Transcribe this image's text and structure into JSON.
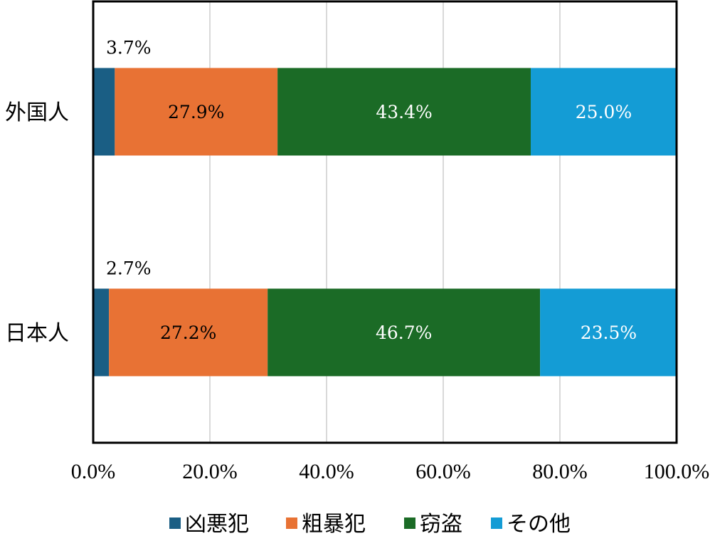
{
  "chart_data": {
    "type": "bar",
    "orientation": "horizontal",
    "stacked": "100%",
    "title": "",
    "xlabel": "",
    "ylabel": "",
    "xlim": [
      0,
      100
    ],
    "grid": true,
    "legend_position": "bottom",
    "categories": [
      "外国人",
      "日本人"
    ],
    "x_ticks": [
      "0.0%",
      "20.0%",
      "40.0%",
      "60.0%",
      "80.0%",
      "100.0%"
    ],
    "series": [
      {
        "name": "凶悪犯",
        "color": "#1a5e84",
        "label_color": "#000000",
        "label_outside": true,
        "values": [
          3.7,
          2.7
        ],
        "labels": [
          "3.7%",
          "2.7%"
        ]
      },
      {
        "name": "粗暴犯",
        "color": "#e87234",
        "label_color": "#000000",
        "label_outside": false,
        "values": [
          27.9,
          27.2
        ],
        "labels": [
          "27.9%",
          "27.2%"
        ]
      },
      {
        "name": "窃盗",
        "color": "#1b6b26",
        "label_color": "#ffffff",
        "label_outside": false,
        "values": [
          43.4,
          46.7
        ],
        "labels": [
          "43.4%",
          "46.7%"
        ]
      },
      {
        "name": "その他",
        "color": "#149cd5",
        "label_color": "#ffffff",
        "label_outside": false,
        "values": [
          25.0,
          23.5
        ],
        "labels": [
          "25.0%",
          "23.5%"
        ]
      }
    ]
  }
}
